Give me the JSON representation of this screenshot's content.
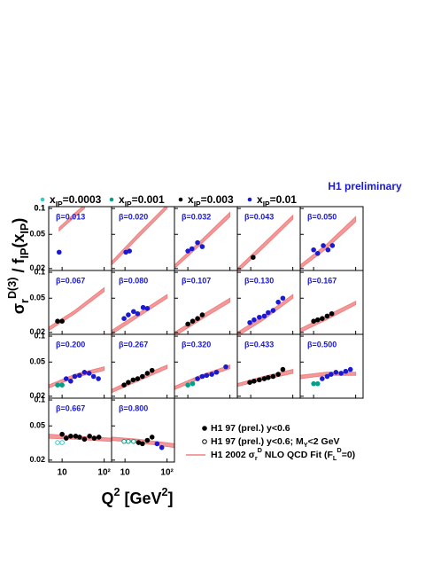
{
  "chart_data": {
    "type": "scatter-panels",
    "title": "H1 preliminary",
    "title_color": "#1a1ad0",
    "ylabel": [
      {
        "t": "σ"
      },
      {
        "t": "r",
        "s": "sub"
      },
      {
        "t": "D(3)",
        "s": "sup"
      },
      {
        "t": " / f"
      },
      {
        "t": "IP",
        "s": "sub"
      },
      {
        "t": "(x"
      },
      {
        "t": "IP",
        "s": "sub"
      },
      {
        "t": ")"
      }
    ],
    "xlabel": [
      {
        "t": "Q"
      },
      {
        "t": "2",
        "s": "sup"
      },
      {
        "t": " [GeV"
      },
      {
        "t": "2",
        "s": "sup"
      },
      {
        "t": "]"
      }
    ],
    "log_x": true,
    "log_y": true,
    "xlim": [
      4.8,
      150
    ],
    "xticks": [
      10,
      {
        "value": 100,
        "label": "10²"
      }
    ],
    "ylim": [
      0.019,
      0.105
    ],
    "yticks": [
      0.02,
      0.05,
      0.1
    ],
    "series": [
      {
        "name": [
          {
            "t": "x"
          },
          {
            "t": "IP",
            "s": "sub"
          },
          {
            "t": "=0.0003"
          }
        ],
        "color": "#33cccc"
      },
      {
        "name": [
          {
            "t": "x"
          },
          {
            "t": "IP",
            "s": "sub"
          },
          {
            "t": "=0.001"
          }
        ],
        "color": "#00a08a"
      },
      {
        "name": [
          {
            "t": "x"
          },
          {
            "t": "IP",
            "s": "sub"
          },
          {
            "t": "=0.003"
          }
        ],
        "color": "#000000"
      },
      {
        "name": [
          {
            "t": "x"
          },
          {
            "t": "IP",
            "s": "sub"
          },
          {
            "t": "=0.01"
          }
        ],
        "color": "#1a1ad0"
      }
    ],
    "legend": [
      {
        "kind": "filled",
        "text": [
          {
            "t": "H1 97 (prel.) y<0.6"
          }
        ]
      },
      {
        "kind": "open",
        "text": [
          {
            "t": "H1 97 (prel.) y<0.6; M"
          },
          {
            "t": "Y",
            "s": "sub"
          },
          {
            "t": "<2 GeV"
          }
        ]
      },
      {
        "kind": "fit",
        "text": [
          {
            "t": "H1 2002 σ"
          },
          {
            "t": "r",
            "s": "sub"
          },
          {
            "t": "D",
            "s": "sup"
          },
          {
            "t": " NLO QCD Fit (F"
          },
          {
            "t": "L",
            "s": "sub"
          },
          {
            "t": "D",
            "s": "sup"
          },
          {
            "t": "=0)"
          }
        ]
      }
    ],
    "fit_color": "#f08080",
    "panels": [
      {
        "label": "β=0.013",
        "data": [
          {
            "series": 3,
            "x": [
              8.5
            ],
            "y": [
              0.031
            ]
          }
        ],
        "fit": {
          "x": [
            8.5,
            20,
            34
          ],
          "lo": [
            0.055,
            0.08,
            0.1
          ],
          "hi": [
            0.06,
            0.088,
            0.11
          ]
        }
      },
      {
        "label": "β=0.020",
        "data": [
          {
            "series": 3,
            "x": [
              10.5,
              12.8
            ],
            "y": [
              0.031,
              0.032
            ]
          }
        ],
        "fit": {
          "x": [
            4.8,
            20,
            100
          ],
          "lo": [
            0.022,
            0.045,
            0.1
          ],
          "hi": [
            0.024,
            0.05,
            0.11
          ]
        }
      },
      {
        "label": "β=0.032",
        "data": [
          {
            "series": 3,
            "x": [
              10,
              12.5,
              17,
              22
            ],
            "y": [
              0.032,
              0.034,
              0.04,
              0.036
            ]
          }
        ],
        "fit": {
          "x": [
            4.8,
            20,
            100
          ],
          "lo": [
            0.02,
            0.038,
            0.08
          ],
          "hi": [
            0.022,
            0.042,
            0.09
          ]
        }
      },
      {
        "label": "β=0.043",
        "data": [
          {
            "series": 2,
            "x": [
              11.4
            ],
            "y": [
              0.027
            ]
          }
        ],
        "fit": {
          "x": [
            4.8,
            20,
            100
          ],
          "lo": [
            0.018,
            0.035,
            0.075
          ],
          "hi": [
            0.02,
            0.039,
            0.083
          ]
        }
      },
      {
        "label": "β=0.050",
        "data": [
          {
            "series": 3,
            "x": [
              10,
              12.5,
              17,
              22,
              28
            ],
            "y": [
              0.033,
              0.03,
              0.037,
              0.033,
              0.037
            ]
          }
        ],
        "fit": {
          "x": [
            4.8,
            20,
            100
          ],
          "lo": [
            0.02,
            0.034,
            0.07
          ],
          "hi": [
            0.022,
            0.038,
            0.08
          ]
        }
      },
      {
        "label": "β=0.067",
        "data": [
          {
            "series": 2,
            "x": [
              7.8,
              10
            ],
            "y": [
              0.027,
              0.027
            ]
          }
        ],
        "fit": {
          "x": [
            4.8,
            20,
            100
          ],
          "lo": [
            0.021,
            0.033,
            0.06
          ],
          "hi": [
            0.023,
            0.036,
            0.066
          ]
        }
      },
      {
        "label": "β=0.080",
        "data": [
          {
            "series": 3,
            "x": [
              9.5,
              12,
              16,
              20,
              27,
              34
            ],
            "y": [
              0.029,
              0.032,
              0.035,
              0.033,
              0.039,
              0.038
            ]
          }
        ],
        "fit": {
          "x": [
            4.8,
            20,
            100
          ],
          "lo": [
            0.019,
            0.03,
            0.05
          ],
          "hi": [
            0.021,
            0.033,
            0.055
          ]
        }
      },
      {
        "label": "β=0.107",
        "data": [
          {
            "series": 2,
            "x": [
              10,
              13,
              17,
              22
            ],
            "y": [
              0.025,
              0.027,
              0.029,
              0.032
            ]
          }
        ],
        "fit": {
          "x": [
            4.8,
            20,
            100
          ],
          "lo": [
            0.018,
            0.028,
            0.045
          ],
          "hi": [
            0.02,
            0.031,
            0.05
          ]
        }
      },
      {
        "label": "β=0.130",
        "data": [
          {
            "series": 3,
            "x": [
              9.5,
              12,
              16,
              21,
              26,
              34,
              45,
              58
            ],
            "y": [
              0.026,
              0.028,
              0.03,
              0.031,
              0.034,
              0.036,
              0.045,
              0.05
            ]
          }
        ],
        "fit": {
          "x": [
            4.8,
            20,
            100
          ],
          "lo": [
            0.018,
            0.028,
            0.05
          ],
          "hi": [
            0.02,
            0.031,
            0.055
          ]
        }
      },
      {
        "label": "β=0.167",
        "data": [
          {
            "series": 2,
            "x": [
              10,
              12.5,
              16,
              21,
              27
            ],
            "y": [
              0.027,
              0.028,
              0.029,
              0.031,
              0.033
            ]
          }
        ],
        "fit": {
          "x": [
            4.8,
            20,
            100
          ],
          "lo": [
            0.02,
            0.028,
            0.042
          ],
          "hi": [
            0.022,
            0.031,
            0.046
          ]
        }
      },
      {
        "label": "β=0.200",
        "data": [
          {
            "series": 1,
            "x": [
              7.8,
              10
            ],
            "y": [
              0.027,
              0.027
            ]
          },
          {
            "series": 3,
            "x": [
              12.5,
              16,
              20,
              26,
              34,
              44,
              56,
              73
            ],
            "y": [
              0.032,
              0.03,
              0.034,
              0.035,
              0.038,
              0.037,
              0.034,
              0.032
            ]
          }
        ],
        "fit": {
          "x": [
            4.8,
            20,
            100
          ],
          "lo": [
            0.025,
            0.033,
            0.04
          ],
          "hi": [
            0.027,
            0.036,
            0.044
          ]
        }
      },
      {
        "label": "β=0.267",
        "data": [
          {
            "series": 2,
            "x": [
              9.5,
              12,
              15.6,
              20,
              26,
              34,
              44
            ],
            "y": [
              0.027,
              0.029,
              0.031,
              0.032,
              0.034,
              0.037,
              0.04
            ]
          }
        ],
        "fit": {
          "x": [
            4.8,
            20,
            100
          ],
          "lo": [
            0.022,
            0.03,
            0.042
          ],
          "hi": [
            0.024,
            0.033,
            0.046
          ]
        }
      },
      {
        "label": "β=0.320",
        "data": [
          {
            "series": 1,
            "x": [
              10,
              13
            ],
            "y": [
              0.027,
              0.028
            ]
          },
          {
            "series": 3,
            "x": [
              17,
              22,
              28,
              37,
              48,
              80
            ],
            "y": [
              0.032,
              0.034,
              0.035,
              0.036,
              0.038,
              0.044
            ]
          }
        ],
        "fit": {
          "x": [
            4.8,
            20,
            100
          ],
          "lo": [
            0.024,
            0.032,
            0.042
          ],
          "hi": [
            0.026,
            0.035,
            0.046
          ]
        }
      },
      {
        "label": "β=0.433",
        "data": [
          {
            "series": 2,
            "x": [
              9.5,
              12,
              16,
              21,
              26,
              34,
              45,
              58
            ],
            "y": [
              0.029,
              0.03,
              0.031,
              0.032,
              0.033,
              0.034,
              0.036,
              0.041
            ]
          }
        ],
        "fit": {
          "x": [
            4.8,
            20,
            100
          ],
          "lo": [
            0.026,
            0.031,
            0.037
          ],
          "hi": [
            0.028,
            0.034,
            0.041
          ]
        }
      },
      {
        "label": "β=0.500",
        "data": [
          {
            "series": 1,
            "x": [
              10,
              12.5
            ],
            "y": [
              0.028,
              0.028
            ]
          },
          {
            "series": 3,
            "x": [
              16,
              21,
              26,
              34,
              45,
              58,
              75
            ],
            "y": [
              0.032,
              0.034,
              0.036,
              0.038,
              0.037,
              0.039,
              0.041
            ]
          }
        ],
        "fit": {
          "x": [
            4.8,
            20,
            100
          ],
          "lo": [
            0.032,
            0.035,
            0.035
          ],
          "hi": [
            0.035,
            0.038,
            0.038
          ]
        }
      },
      {
        "label": "β=0.667",
        "data": [
          {
            "series": 0,
            "open": true,
            "x": [
              7.8,
              10
            ],
            "y": [
              0.032,
              0.032
            ]
          },
          {
            "series": 2,
            "x": [
              10,
              12.5,
              16,
              21,
              26,
              34,
              45,
              58,
              75
            ],
            "y": [
              0.04,
              0.036,
              0.038,
              0.038,
              0.037,
              0.035,
              0.038,
              0.036,
              0.037
            ]
          }
        ],
        "fit": {
          "x": [
            4.8,
            20,
            150
          ],
          "lo": [
            0.036,
            0.035,
            0.033
          ],
          "hi": [
            0.04,
            0.038,
            0.036
          ]
        }
      },
      {
        "label": "β=0.800",
        "data": [
          {
            "series": 1,
            "open": true,
            "x": [
              9.5,
              12,
              16
            ],
            "y": [
              0.033,
              0.033,
              0.033
            ]
          },
          {
            "series": 2,
            "x": [
              21,
              26,
              34,
              44
            ],
            "y": [
              0.032,
              0.031,
              0.034,
              0.037
            ]
          },
          {
            "series": 3,
            "x": [
              58,
              75
            ],
            "y": [
              0.031,
              0.028
            ]
          }
        ],
        "fit": {
          "x": [
            4.8,
            20,
            150
          ],
          "lo": [
            0.034,
            0.032,
            0.028
          ],
          "hi": [
            0.037,
            0.035,
            0.031
          ]
        }
      }
    ]
  }
}
